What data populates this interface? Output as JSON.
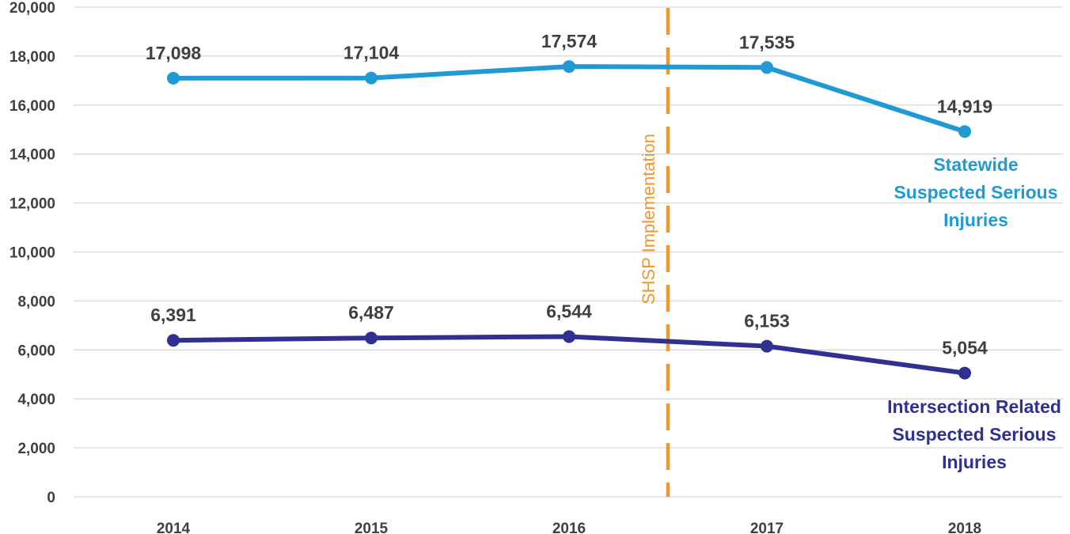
{
  "chart_data": {
    "type": "line",
    "categories": [
      "2014",
      "2015",
      "2016",
      "2017",
      "2018"
    ],
    "ylim": [
      0,
      20000
    ],
    "yticks": [
      0,
      2000,
      4000,
      6000,
      8000,
      10000,
      12000,
      14000,
      16000,
      18000,
      20000
    ],
    "ytick_labels": [
      "0",
      "2,000",
      "4,000",
      "6,000",
      "8,000",
      "10,000",
      "12,000",
      "14,000",
      "16,000",
      "18,000",
      "20,000"
    ],
    "grid": true,
    "series": [
      {
        "name": [
          "Statewide",
          "Suspected Serious",
          "Injuries"
        ],
        "values": [
          17098,
          17104,
          17574,
          17535,
          14919
        ],
        "value_labels": [
          "17,098",
          "17,104",
          "17,574",
          "17,535",
          "14,919"
        ],
        "color": "#1f9ad6"
      },
      {
        "name": [
          "Intersection Related",
          "Suspected Serious",
          "Injuries"
        ],
        "values": [
          6391,
          6487,
          6544,
          6153,
          5054
        ],
        "value_labels": [
          "6,391",
          "6,487",
          "6,544",
          "6,153",
          "5,054"
        ],
        "color": "#2e3192"
      }
    ],
    "annotation": {
      "text": "SHSP Implementation",
      "x": 2016.5,
      "color": "#f0962e"
    }
  }
}
